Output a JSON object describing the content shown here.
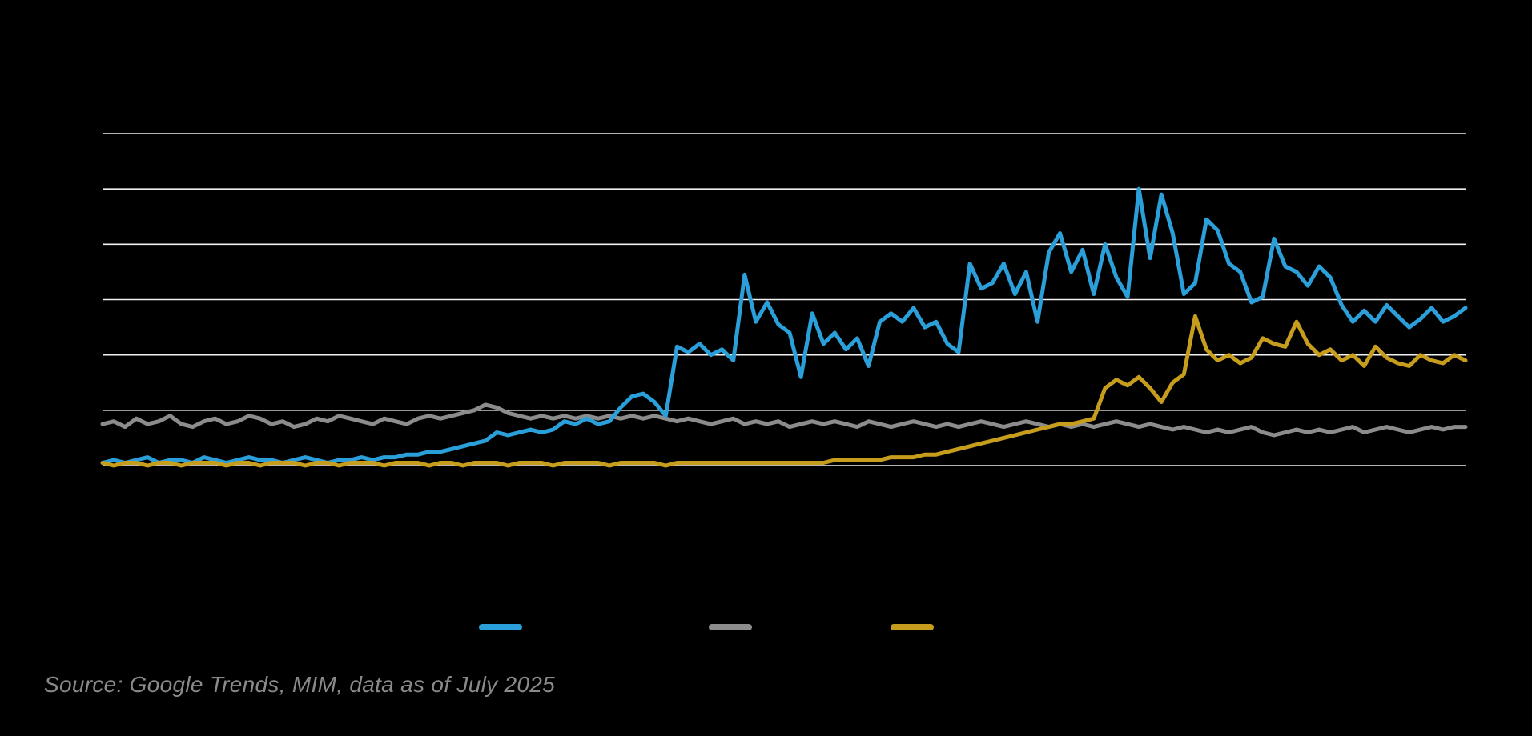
{
  "page": {
    "background_color": "#000000"
  },
  "chart_data": {
    "type": "line",
    "title": "",
    "xlabel": "",
    "ylabel": "",
    "ylim": [
      0,
      120
    ],
    "grid_step": 20,
    "grid": "horizontal",
    "grid_color": "#F0F0F0",
    "background_color": "#000000",
    "legend_position": "bottom-center",
    "axis_tick_labels_visible": false,
    "series": [
      {
        "id": "blue",
        "label": "",
        "color": "#2B9FD9",
        "values": [
          1,
          2,
          1,
          2,
          3,
          1,
          2,
          2,
          1,
          3,
          2,
          1,
          2,
          3,
          2,
          2,
          1,
          2,
          3,
          2,
          1,
          2,
          2,
          3,
          2,
          3,
          3,
          4,
          4,
          5,
          5,
          6,
          7,
          8,
          9,
          12,
          11,
          12,
          13,
          12,
          13,
          16,
          15,
          17,
          15,
          16,
          21,
          25,
          26,
          23,
          18,
          43,
          41,
          44,
          40,
          42,
          38,
          69,
          52,
          59,
          51,
          48,
          32,
          55,
          44,
          48,
          42,
          46,
          36,
          52,
          55,
          52,
          57,
          50,
          52,
          44,
          41,
          73,
          64,
          66,
          73,
          62,
          70,
          52,
          77,
          84,
          70,
          78,
          62,
          80,
          68,
          61,
          100,
          75,
          98,
          84,
          62,
          66,
          89,
          85,
          73,
          70,
          59,
          61,
          82,
          72,
          70,
          65,
          72,
          68,
          58,
          52,
          56,
          52,
          58,
          54,
          50,
          53,
          57,
          52,
          54,
          57
        ]
      },
      {
        "id": "gray",
        "label": "",
        "color": "#8C8C8C",
        "values": [
          15,
          16,
          14,
          17,
          15,
          16,
          18,
          15,
          14,
          16,
          17,
          15,
          16,
          18,
          17,
          15,
          16,
          14,
          15,
          17,
          16,
          18,
          17,
          16,
          15,
          17,
          16,
          15,
          17,
          18,
          17,
          18,
          19,
          20,
          22,
          21,
          19,
          18,
          17,
          18,
          17,
          18,
          17,
          18,
          17,
          18,
          17,
          18,
          17,
          18,
          17,
          16,
          17,
          16,
          15,
          16,
          17,
          15,
          16,
          15,
          16,
          14,
          15,
          16,
          15,
          16,
          15,
          14,
          16,
          15,
          14,
          15,
          16,
          15,
          14,
          15,
          14,
          15,
          16,
          15,
          14,
          15,
          16,
          15,
          14,
          15,
          14,
          15,
          14,
          15,
          16,
          15,
          14,
          15,
          14,
          13,
          14,
          13,
          12,
          13,
          12,
          13,
          14,
          12,
          11,
          12,
          13,
          12,
          13,
          12,
          13,
          14,
          12,
          13,
          14,
          13,
          12,
          13,
          14,
          13,
          14,
          14
        ]
      },
      {
        "id": "gold",
        "label": "",
        "color": "#C79D1E",
        "values": [
          1,
          0,
          1,
          1,
          0,
          1,
          1,
          0,
          1,
          1,
          1,
          0,
          1,
          1,
          0,
          1,
          1,
          1,
          0,
          1,
          1,
          0,
          1,
          1,
          1,
          0,
          1,
          1,
          1,
          0,
          1,
          1,
          0,
          1,
          1,
          1,
          0,
          1,
          1,
          1,
          0,
          1,
          1,
          1,
          1,
          0,
          1,
          1,
          1,
          1,
          0,
          1,
          1,
          1,
          1,
          1,
          1,
          1,
          1,
          1,
          1,
          1,
          1,
          1,
          1,
          2,
          2,
          2,
          2,
          2,
          3,
          3,
          3,
          4,
          4,
          5,
          6,
          7,
          8,
          9,
          10,
          11,
          12,
          13,
          14,
          15,
          15,
          16,
          17,
          28,
          31,
          29,
          32,
          28,
          23,
          30,
          33,
          54,
          42,
          38,
          40,
          37,
          39,
          46,
          44,
          43,
          52,
          44,
          40,
          42,
          38,
          40,
          36,
          43,
          39,
          37,
          36,
          40,
          38,
          37,
          40,
          38
        ]
      }
    ]
  },
  "source_note": "Source: Google Trends, MIM, data as of July 2025"
}
